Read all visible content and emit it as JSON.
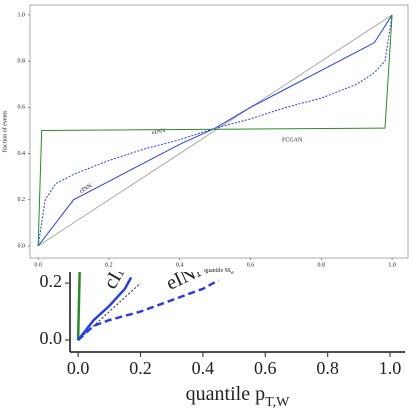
{
  "chart_data": [
    {
      "type": "line",
      "x_label": "quantile M_W",
      "y_label": "fraction of events",
      "xlim": [
        -0.023,
        1.045
      ],
      "ylim": [
        -0.052,
        1.043
      ],
      "xticks": [
        {
          "value": 0,
          "label": "0.0"
        },
        0.2,
        0.4,
        0.6,
        0.8,
        {
          "value": 1,
          "label": "1.0"
        }
      ],
      "yticks": [
        {
          "value": 0,
          "label": "0.0"
        },
        0.2,
        0.4,
        0.6,
        0.8,
        {
          "value": 1,
          "label": "1.0"
        }
      ],
      "series": [
        {
          "color": "#aaaaaa",
          "x": [
            0,
            1
          ],
          "values": [
            0,
            1
          ]
        },
        {
          "name": "cINN",
          "color": "#2a3fe0",
          "x": [
            0,
            0.1,
            0.2,
            0.3,
            0.4,
            0.5,
            0.6,
            0.7,
            0.8,
            0.9,
            0.95,
            1
          ],
          "values": [
            0,
            0.2,
            0.28,
            0.36,
            0.44,
            0.51,
            0.6,
            0.68,
            0.76,
            0.84,
            0.88,
            1
          ]
        },
        {
          "name": "eINN",
          "color": "#2a3fe0",
          "dashed": true,
          "x": [
            0,
            0.02,
            0.05,
            0.1,
            0.2,
            0.3,
            0.4,
            0.5,
            0.6,
            0.7,
            0.8,
            0.9,
            0.95,
            0.98,
            1
          ],
          "values": [
            0,
            0.2,
            0.27,
            0.31,
            0.37,
            0.42,
            0.46,
            0.51,
            0.55,
            0.6,
            0.64,
            0.7,
            0.75,
            0.8,
            1
          ]
        },
        {
          "name": "FCGAN",
          "color": "#2a8a2a",
          "x": [
            0,
            0.01,
            0.98,
            1
          ],
          "values": [
            0,
            0.5,
            0.51,
            1
          ]
        }
      ]
    },
    {
      "type": "line",
      "x_label": "quantile p_T,W",
      "xlim": [
        -0.026,
        1.048
      ],
      "ylim": [
        -0.042,
        0.239
      ],
      "xticks": [
        {
          "value": 0,
          "label": "0.0"
        },
        0.2,
        0.4,
        0.6,
        0.8,
        {
          "value": 1,
          "label": "1.0"
        }
      ],
      "yticks": [
        {
          "value": 0,
          "label": "0.0"
        },
        0.2
      ],
      "series": [
        {
          "color": "#2a8a2a",
          "x": [
            0,
            0.005
          ],
          "values": [
            0,
            0.24
          ]
        },
        {
          "color": "#222222",
          "dashed": true,
          "thin": true,
          "x": [
            0,
            0.2
          ],
          "values": [
            0,
            0.2
          ]
        },
        {
          "name": "cINN",
          "color": "#2a3fe0",
          "x": [
            0,
            0.05,
            0.1,
            0.15,
            0.17
          ],
          "values": [
            0,
            0.07,
            0.12,
            0.18,
            0.22
          ]
        },
        {
          "name": "eINN",
          "color": "#2a3fe0",
          "dashed": true,
          "x": [
            0,
            0.05,
            0.1,
            0.2,
            0.3,
            0.4,
            0.45
          ],
          "values": [
            0,
            0.05,
            0.07,
            0.1,
            0.14,
            0.18,
            0.21
          ]
        }
      ]
    }
  ]
}
